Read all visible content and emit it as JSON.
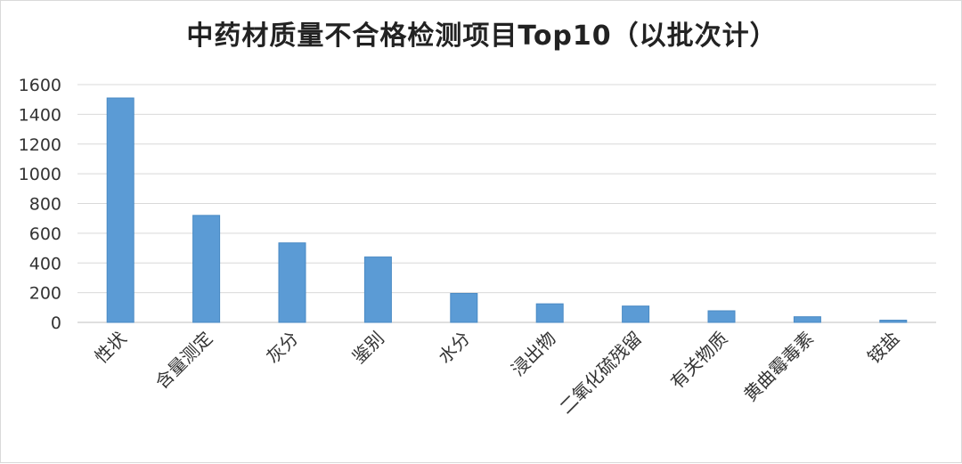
{
  "chart_data": {
    "type": "bar",
    "title": "中药材质量不合格检测项目Top10（以批次计）",
    "categories": [
      "性状",
      "含量测定",
      "灰分",
      "鉴别",
      "水分",
      "浸出物",
      "二氧化硫残留",
      "有关物质",
      "黄曲霉毒素",
      "铵盐"
    ],
    "values": [
      1510,
      720,
      535,
      440,
      195,
      125,
      110,
      78,
      38,
      15
    ],
    "ylim": [
      0,
      1600
    ],
    "yticks": [
      0,
      200,
      400,
      600,
      800,
      1000,
      1200,
      1400,
      1600
    ],
    "grid": true,
    "legend": "none",
    "bar_color": "#5b9bd5",
    "xlabel": "",
    "ylabel": ""
  }
}
